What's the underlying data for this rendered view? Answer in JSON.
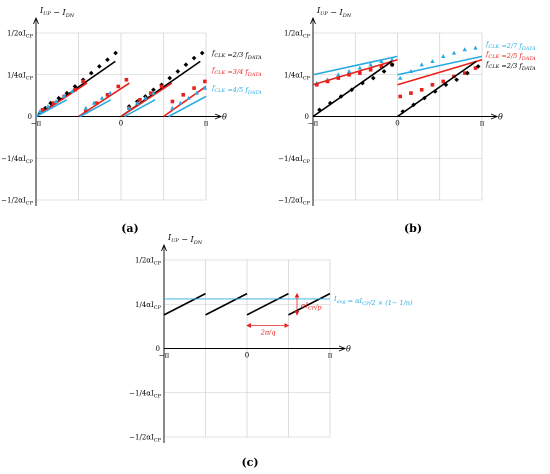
{
  "chart_data": [
    {
      "panel": "(a)",
      "type": "line",
      "ylabel": "I_UP − I_DN",
      "xlabel": "θ",
      "x_ticks": [
        "−π",
        "0",
        "π"
      ],
      "y_ticks": [
        "1/2 αI_CP",
        "1/4 αI_CP",
        "0",
        "−1/4 αI_CP",
        "−1/2 αI_CP"
      ],
      "xlim": [
        -3.1416,
        3.1416
      ],
      "ylim": [
        -0.5,
        0.5
      ],
      "grid": true,
      "legend_position": "right",
      "series": [
        {
          "name": "f_CLK = 2/3 f_DATA",
          "color": "#000000",
          "marker": "diamond",
          "lines": [
            [
              [
                -3.14,
                0.0
              ],
              [
                -0.21,
                0.33
              ]
            ],
            [
              [
                0.0,
                0.0
              ],
              [
                2.93,
                0.33
              ]
            ]
          ],
          "points": [
            [
              -3.0,
              0.02
            ],
            [
              -2.8,
              0.05
            ],
            [
              -2.6,
              0.08
            ],
            [
              -2.3,
              0.11
            ],
            [
              -2.0,
              0.14
            ],
            [
              -1.7,
              0.18
            ],
            [
              -1.4,
              0.22
            ],
            [
              -1.1,
              0.26
            ],
            [
              -0.8,
              0.3
            ],
            [
              -0.5,
              0.34
            ],
            [
              -0.2,
              0.38
            ],
            [
              0.3,
              0.06
            ],
            [
              0.6,
              0.09
            ],
            [
              0.9,
              0.12
            ],
            [
              1.2,
              0.16
            ],
            [
              1.5,
              0.19
            ],
            [
              1.8,
              0.23
            ],
            [
              2.1,
              0.27
            ],
            [
              2.4,
              0.31
            ],
            [
              2.7,
              0.35
            ],
            [
              3.0,
              0.38
            ]
          ]
        },
        {
          "name": "f_CLK = 3/4 f_DATA",
          "color": "#e8201c",
          "marker": "square",
          "lines": [
            [
              [
                -3.14,
                0.0
              ],
              [
                -1.26,
                0.2
              ]
            ],
            [
              [
                -1.57,
                0.0
              ],
              [
                0.31,
                0.2
              ]
            ],
            [
              [
                0.0,
                0.0
              ],
              [
                1.88,
                0.2
              ]
            ],
            [
              [
                1.57,
                0.0
              ],
              [
                3.14,
                0.18
              ]
            ]
          ],
          "points": [
            [
              -2.9,
              0.04
            ],
            [
              -2.5,
              0.08
            ],
            [
              -2.1,
              0.12
            ],
            [
              -1.7,
              0.16
            ],
            [
              -1.4,
              0.21
            ],
            [
              -1.3,
              0.03
            ],
            [
              -0.9,
              0.08
            ],
            [
              -0.5,
              0.13
            ],
            [
              -0.1,
              0.18
            ],
            [
              0.2,
              0.22
            ],
            [
              0.3,
              0.05
            ],
            [
              0.7,
              0.1
            ],
            [
              1.1,
              0.14
            ],
            [
              1.5,
              0.18
            ],
            [
              1.9,
              0.09
            ],
            [
              2.3,
              0.13
            ],
            [
              2.7,
              0.17
            ],
            [
              3.1,
              0.21
            ]
          ]
        },
        {
          "name": "f_CLK = 4/5 f_DATA",
          "color": "#29abe2",
          "marker": "triangle",
          "lines": [
            [
              [
                -3.14,
                0.0
              ],
              [
                -2.01,
                0.1
              ]
            ],
            [
              [
                -1.51,
                0.0
              ],
              [
                -0.38,
                0.1
              ]
            ],
            [
              [
                0.13,
                0.0
              ],
              [
                1.26,
                0.1
              ]
            ],
            [
              [
                1.76,
                0.0
              ],
              [
                3.14,
                0.12
              ]
            ]
          ],
          "points": [
            [
              -3.0,
              0.03
            ],
            [
              -2.7,
              0.06
            ],
            [
              -2.4,
              0.09
            ],
            [
              -2.1,
              0.12
            ],
            [
              -1.8,
              0.15
            ],
            [
              -1.3,
              0.05
            ],
            [
              -1.0,
              0.08
            ],
            [
              -0.7,
              0.11
            ],
            [
              -0.4,
              0.14
            ],
            [
              0.3,
              0.05
            ],
            [
              0.6,
              0.08
            ],
            [
              0.9,
              0.11
            ],
            [
              1.2,
              0.14
            ],
            [
              1.9,
              0.05
            ],
            [
              2.2,
              0.08
            ],
            [
              2.5,
              0.11
            ],
            [
              2.8,
              0.14
            ],
            [
              3.1,
              0.17
            ]
          ]
        }
      ]
    },
    {
      "panel": "(b)",
      "type": "line",
      "ylabel": "I_UP − I_DN",
      "xlabel": "θ",
      "x_ticks": [
        "−π",
        "0",
        "π"
      ],
      "y_ticks": [
        "1/2 αI_CP",
        "1/4 αI_CP",
        "0",
        "−1/4 αI_CP",
        "−1/2 αI_CP"
      ],
      "xlim": [
        -3.1416,
        3.1416
      ],
      "ylim": [
        -0.5,
        0.5
      ],
      "grid": true,
      "legend_position": "right",
      "series": [
        {
          "name": "f_CLK = 2/7 f_DATA",
          "color": "#29abe2",
          "marker": "triangle",
          "lines": [
            [
              [
                -3.14,
                0.25
              ],
              [
                0.0,
                0.36
              ]
            ],
            [
              [
                0.0,
                0.25
              ],
              [
                3.14,
                0.36
              ]
            ]
          ],
          "points": [
            [
              -3.0,
              0.2
            ],
            [
              -2.6,
              0.22
            ],
            [
              -2.2,
              0.25
            ],
            [
              -1.8,
              0.27
            ],
            [
              -1.4,
              0.29
            ],
            [
              -1.0,
              0.31
            ],
            [
              -0.6,
              0.33
            ],
            [
              -0.2,
              0.34
            ],
            [
              0.1,
              0.23
            ],
            [
              0.5,
              0.27
            ],
            [
              0.9,
              0.31
            ],
            [
              1.3,
              0.33
            ],
            [
              1.7,
              0.36
            ],
            [
              2.1,
              0.38
            ],
            [
              2.5,
              0.4
            ],
            [
              2.9,
              0.41
            ]
          ]
        },
        {
          "name": "f_CLK = 2/5 f_DATA",
          "color": "#e8201c",
          "marker": "square",
          "lines": [
            [
              [
                -3.14,
                0.19
              ],
              [
                0.0,
                0.34
              ]
            ],
            [
              [
                0.0,
                0.19
              ],
              [
                3.14,
                0.34
              ]
            ]
          ],
          "points": [
            [
              -3.0,
              0.19
            ],
            [
              -2.6,
              0.21
            ],
            [
              -2.2,
              0.23
            ],
            [
              -1.8,
              0.25
            ],
            [
              -1.4,
              0.26
            ],
            [
              -1.0,
              0.28
            ],
            [
              -0.6,
              0.3
            ],
            [
              -0.2,
              0.31
            ],
            [
              0.1,
              0.12
            ],
            [
              0.5,
              0.14
            ],
            [
              0.9,
              0.16
            ],
            [
              1.3,
              0.19
            ],
            [
              1.7,
              0.21
            ],
            [
              2.1,
              0.24
            ],
            [
              2.5,
              0.26
            ],
            [
              2.9,
              0.29
            ]
          ]
        },
        {
          "name": "f_CLK = 2/3 f_DATA",
          "color": "#000000",
          "marker": "diamond",
          "lines": [
            [
              [
                -3.14,
                0.0
              ],
              [
                -0.21,
                0.33
              ]
            ],
            [
              [
                0.0,
                0.0
              ],
              [
                2.93,
                0.33
              ]
            ]
          ],
          "points": [
            [
              -2.9,
              0.04
            ],
            [
              -2.5,
              0.08
            ],
            [
              -2.1,
              0.12
            ],
            [
              -1.7,
              0.16
            ],
            [
              -1.3,
              0.2
            ],
            [
              -0.9,
              0.23
            ],
            [
              -0.5,
              0.27
            ],
            [
              -0.2,
              0.31
            ],
            [
              0.2,
              0.03
            ],
            [
              0.6,
              0.07
            ],
            [
              1.0,
              0.11
            ],
            [
              1.4,
              0.15
            ],
            [
              1.8,
              0.19
            ],
            [
              2.2,
              0.22
            ],
            [
              2.6,
              0.26
            ],
            [
              3.0,
              0.3
            ]
          ]
        }
      ]
    },
    {
      "panel": "(c)",
      "type": "line",
      "ylabel": "I_UP − I_DN",
      "xlabel": "θ",
      "x_ticks": [
        "−π",
        "0",
        "π"
      ],
      "y_ticks": [
        "1/2 αI_CP",
        "1/4 αI_CP",
        "0",
        "−1/4 αI_CP",
        "−1/2 αI_CP"
      ],
      "xlim": [
        -3.1416,
        3.1416
      ],
      "ylim": [
        -0.5,
        0.5
      ],
      "grid": true,
      "series": [
        {
          "color": "#000000",
          "lines": [
            [
              [
                -3.14,
                0.19
              ],
              [
                -1.57,
                0.31
              ]
            ],
            [
              [
                -1.57,
                0.19
              ],
              [
                0.0,
                0.31
              ]
            ],
            [
              [
                0.0,
                0.19
              ],
              [
                1.57,
                0.31
              ]
            ],
            [
              [
                1.57,
                0.19
              ],
              [
                3.14,
                0.31
              ]
            ]
          ]
        }
      ],
      "average_line": {
        "y": 0.28,
        "color": "#29abe2",
        "label": "I_avg = αI_CP/2 × (1− 1/n)"
      },
      "annotations": [
        {
          "text": "αI_CP/p",
          "color": "#e8201c"
        },
        {
          "text": "2π/q",
          "color": "#e8201c"
        }
      ]
    }
  ]
}
